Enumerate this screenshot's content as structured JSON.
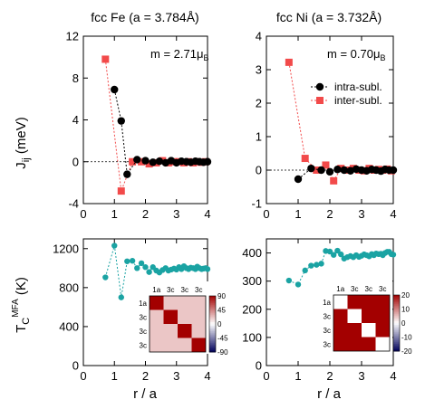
{
  "colors": {
    "intra": "#000000",
    "inter": "#f24a4a",
    "tc": "#1aa3a3",
    "hm_high": "#a30000",
    "hm_mid": "#ffffff",
    "hm_low": "#00005a"
  },
  "y_axis_label": {
    "main": "J",
    "sub": "ij",
    "unit": " (meV)"
  },
  "tc_axis_label": {
    "pre": "T",
    "sub": "C",
    "sup": "MFA",
    "unit": " (K)"
  },
  "x_axis_label": "r / a",
  "chart_data": [
    {
      "id": "fe-jij",
      "type": "scatter",
      "title": "fcc Fe (a = 3.784Å)",
      "annotation": {
        "text": "m = 2.71μ",
        "sub": "B"
      },
      "xlim": [
        0,
        4
      ],
      "ylim": [
        -4,
        12
      ],
      "xticks": [
        0,
        1,
        2,
        3,
        4
      ],
      "yticks": [
        -4,
        0,
        4,
        8,
        12
      ],
      "series": [
        {
          "key": "intra",
          "marker": "circle",
          "x": [
            1.0,
            1.22,
            1.41,
            1.73,
            2.0,
            2.24,
            2.45,
            2.65,
            2.83,
            3.0,
            3.16,
            3.32,
            3.46,
            3.61,
            3.74,
            3.87,
            4.0
          ],
          "y": [
            6.9,
            3.9,
            -1.2,
            0.2,
            0.1,
            -0.05,
            0.05,
            -0.1,
            0.1,
            -0.1,
            0.05,
            0.0,
            -0.05,
            0.05,
            0.0,
            -0.05,
            0.0
          ]
        },
        {
          "key": "inter",
          "marker": "square",
          "x": [
            0.71,
            1.22,
            1.58,
            1.87,
            2.12,
            2.35,
            2.55,
            2.74,
            2.92,
            3.08,
            3.24,
            3.39,
            3.54,
            3.67,
            3.81,
            3.94
          ],
          "y": [
            9.8,
            -2.8,
            0.0,
            0.0,
            -0.2,
            -0.1,
            0.1,
            -0.1,
            0.0,
            0.0,
            -0.1,
            0.0,
            -0.1,
            0.0,
            -0.05,
            0.0
          ]
        }
      ]
    },
    {
      "id": "ni-jij",
      "type": "scatter",
      "title": "fcc Ni (a = 3.732Å)",
      "annotation": {
        "text": "m = 0.70μ",
        "sub": "B"
      },
      "legend": {
        "position": "right",
        "entries": [
          {
            "key": "intra",
            "label": "intra-subl."
          },
          {
            "key": "inter",
            "label": "inter-subl."
          }
        ]
      },
      "xlim": [
        0,
        4
      ],
      "ylim": [
        -1,
        4
      ],
      "xticks": [
        0,
        1,
        2,
        3,
        4
      ],
      "yticks": [
        -1,
        0,
        1,
        2,
        3,
        4
      ],
      "series": [
        {
          "key": "intra",
          "marker": "circle",
          "x": [
            1.0,
            1.41,
            1.73,
            2.0,
            2.24,
            2.45,
            2.65,
            2.83,
            3.0,
            3.16,
            3.32,
            3.46,
            3.61,
            3.74,
            3.87,
            4.0
          ],
          "y": [
            -0.27,
            0.05,
            0.0,
            -0.05,
            0.02,
            0.0,
            -0.02,
            0.03,
            0.0,
            -0.02,
            0.02,
            0.0,
            -0.03,
            0.02,
            0.0,
            0.0
          ]
        },
        {
          "key": "inter",
          "marker": "square",
          "x": [
            0.71,
            1.22,
            1.58,
            1.87,
            2.12,
            2.35,
            2.55,
            2.74,
            2.92,
            3.08,
            3.24,
            3.39,
            3.54,
            3.67,
            3.81,
            3.94
          ],
          "y": [
            3.22,
            0.35,
            0.0,
            0.15,
            -0.32,
            0.05,
            0.0,
            0.05,
            0.0,
            -0.02,
            0.05,
            0.0,
            0.02,
            0.0,
            0.03,
            -0.02
          ]
        }
      ]
    },
    {
      "id": "fe-tc",
      "type": "line",
      "xlim": [
        0,
        4
      ],
      "ylim": [
        0,
        1300
      ],
      "xticks": [
        0,
        1,
        2,
        3,
        4
      ],
      "yticks": [
        0,
        400,
        800,
        1200
      ],
      "series": [
        {
          "key": "tc",
          "marker": "circle",
          "x": [
            0.71,
            1.0,
            1.22,
            1.41,
            1.58,
            1.73,
            1.87,
            2.0,
            2.12,
            2.24,
            2.35,
            2.45,
            2.55,
            2.65,
            2.74,
            2.83,
            2.92,
            3.0,
            3.08,
            3.16,
            3.24,
            3.32,
            3.39,
            3.46,
            3.54,
            3.61,
            3.67,
            3.74,
            3.81,
            3.87,
            3.94,
            4.0
          ],
          "y": [
            905,
            1230,
            700,
            1070,
            1075,
            1000,
            1050,
            1010,
            960,
            1010,
            975,
            955,
            980,
            1000,
            975,
            985,
            995,
            985,
            1010,
            990,
            1020,
            1000,
            990,
            1005,
            1000,
            990,
            1015,
            1000,
            990,
            995,
            1000,
            990
          ]
        }
      ],
      "inset": {
        "type": "heatmap",
        "col_labels": [
          "1a",
          "3c",
          "3c",
          "3c"
        ],
        "row_labels": [
          "1a",
          "3c",
          "3c",
          "3c"
        ],
        "matrix": [
          [
            90,
            20,
            20,
            20
          ],
          [
            20,
            90,
            20,
            20
          ],
          [
            20,
            20,
            90,
            20
          ],
          [
            20,
            20,
            20,
            90
          ]
        ],
        "range": [
          -90,
          90
        ],
        "colorbar_ticks": [
          90,
          45,
          0,
          -45,
          -90
        ]
      }
    },
    {
      "id": "ni-tc",
      "type": "line",
      "xlim": [
        0,
        4
      ],
      "ylim": [
        0,
        450
      ],
      "xticks": [
        0,
        1,
        2,
        3,
        4
      ],
      "yticks": [
        0,
        100,
        200,
        300,
        400
      ],
      "series": [
        {
          "key": "tc",
          "marker": "circle",
          "x": [
            0.71,
            1.0,
            1.22,
            1.41,
            1.58,
            1.73,
            1.87,
            2.0,
            2.12,
            2.24,
            2.35,
            2.45,
            2.55,
            2.65,
            2.74,
            2.83,
            2.92,
            3.0,
            3.08,
            3.16,
            3.24,
            3.32,
            3.39,
            3.46,
            3.54,
            3.61,
            3.67,
            3.74,
            3.81,
            3.87,
            3.94,
            4.0
          ],
          "y": [
            302,
            288,
            338,
            355,
            358,
            362,
            407,
            405,
            393,
            408,
            395,
            380,
            385,
            389,
            385,
            392,
            386,
            390,
            395,
            392,
            388,
            396,
            392,
            398,
            396,
            397,
            392,
            400,
            404,
            404,
            396,
            394
          ]
        }
      ],
      "inset": {
        "type": "heatmap",
        "col_labels": [
          "1a",
          "3c",
          "3c",
          "3c"
        ],
        "row_labels": [
          "1a",
          "3c",
          "3c",
          "3c"
        ],
        "matrix": [
          [
            0,
            20,
            20,
            20
          ],
          [
            20,
            0,
            20,
            20
          ],
          [
            20,
            20,
            0,
            20
          ],
          [
            20,
            20,
            20,
            0
          ]
        ],
        "range": [
          -20,
          20
        ],
        "colorbar_ticks": [
          20,
          10,
          0,
          -10,
          -20
        ]
      }
    }
  ]
}
